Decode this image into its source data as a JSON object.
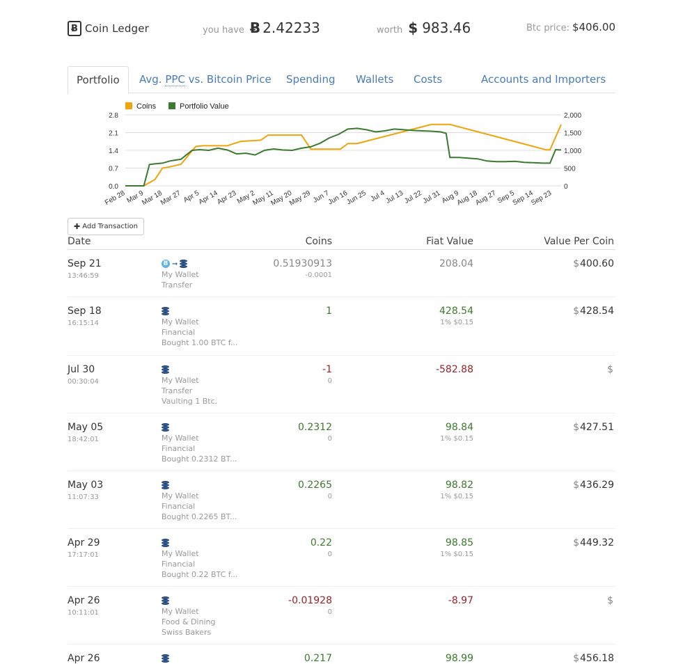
{
  "header": {
    "app_name": "Coin Ledger",
    "brand_glyph": "Ƀ",
    "you_have_label": "you have",
    "btc_glyph": "Ƀ",
    "btc_balance": "2.42233",
    "worth_label": "worth",
    "usd_glyph": "$",
    "usd_worth": "983.46",
    "price_label": "Btc price:",
    "price_value": "$406.00"
  },
  "tabs": [
    {
      "label": "Portfolio",
      "active": true
    },
    {
      "label_pre": "Avg. ",
      "label_abbr": "PPC",
      "label_post": " vs. Bitcoin Price"
    },
    {
      "label": "Spending"
    },
    {
      "label": "Wallets"
    },
    {
      "label": "Costs"
    },
    {
      "label": "Accounts and Importers"
    }
  ],
  "add_button": {
    "icon": "plus-icon",
    "label": "Add Transaction"
  },
  "table": {
    "headers": {
      "date": "Date",
      "coins": "Coins",
      "fiat": "Fiat Value",
      "vpc": "Value Per Coin"
    },
    "rows": [
      {
        "date": "Sep 21",
        "time": "13:46:59",
        "icons": "btc-to-wallet",
        "lines": [
          "My Wallet",
          "Transfer"
        ],
        "coins": "0.51930913",
        "coins_class": "neutral",
        "coins_sub": "-0.0001",
        "fiat": "208.04",
        "fiat_class": "neutral",
        "fiat_sub": "",
        "vpc_sign": "$",
        "vpc": "400.60"
      },
      {
        "date": "Sep 18",
        "time": "16:15:14",
        "icons": "wallet",
        "lines": [
          "My Wallet",
          "Financial",
          "Bought 1.00 BTC f..."
        ],
        "coins": "1",
        "coins_class": "pos",
        "coins_sub": "",
        "fiat": "428.54",
        "fiat_class": "pos",
        "fiat_sub": "1% $0.15",
        "vpc_sign": "$",
        "vpc": "428.54"
      },
      {
        "date": "Jul 30",
        "time": "00:30:04",
        "icons": "wallet",
        "lines": [
          "My Wallet",
          "Transfer",
          "Vaulting 1 Btc."
        ],
        "coins": "-1",
        "coins_class": "neg",
        "coins_sub": "0",
        "fiat": "-582.88",
        "fiat_class": "neg",
        "fiat_sub": "",
        "vpc_sign": "$",
        "vpc": ""
      },
      {
        "date": "May 05",
        "time": "18:42:01",
        "icons": "wallet",
        "lines": [
          "My Wallet",
          "Financial",
          "Bought 0.2312 BT..."
        ],
        "coins": "0.2312",
        "coins_class": "pos",
        "coins_sub": "0",
        "fiat": "98.84",
        "fiat_class": "pos",
        "fiat_sub": "1% $0.15",
        "vpc_sign": "$",
        "vpc": "427.51"
      },
      {
        "date": "May 03",
        "time": "11:07:33",
        "icons": "wallet",
        "lines": [
          "My Wallet",
          "Financial",
          "Bought 0.2265 BT..."
        ],
        "coins": "0.2265",
        "coins_class": "pos",
        "coins_sub": "0",
        "fiat": "98.82",
        "fiat_class": "pos",
        "fiat_sub": "1% $0.15",
        "vpc_sign": "$",
        "vpc": "436.29"
      },
      {
        "date": "Apr 29",
        "time": "17:17:01",
        "icons": "wallet",
        "lines": [
          "My Wallet",
          "Financial",
          "Bought 0.22 BTC f..."
        ],
        "coins": "0.22",
        "coins_class": "pos",
        "coins_sub": "0",
        "fiat": "98.85",
        "fiat_class": "pos",
        "fiat_sub": "1% $0.15",
        "vpc_sign": "$",
        "vpc": "449.32"
      },
      {
        "date": "Apr 26",
        "time": "10:11:01",
        "icons": "wallet",
        "lines": [
          "My Wallet",
          "Food & Dining",
          "Swiss Bakers"
        ],
        "coins": "-0.01928",
        "coins_class": "neg",
        "coins_sub": "0",
        "fiat": "-8.97",
        "fiat_class": "neg",
        "fiat_sub": "",
        "vpc_sign": "$",
        "vpc": ""
      },
      {
        "date": "Apr 26",
        "time": "",
        "icons": "wallet",
        "lines": [],
        "coins": "0.217",
        "coins_class": "pos",
        "coins_sub": "",
        "fiat": "98.99",
        "fiat_class": "pos",
        "fiat_sub": "",
        "vpc_sign": "$",
        "vpc": "456.18"
      }
    ]
  },
  "chart_data": {
    "type": "line",
    "legend_position": "top-left",
    "grid": true,
    "x_labels": [
      "Feb 28",
      "Mar 9",
      "Mar 18",
      "Mar 27",
      "Apr 5",
      "Apr 14",
      "Apr 23",
      "May 2",
      "May 11",
      "May 20",
      "May 29",
      "Jun 7",
      "Jun 16",
      "Jun 25",
      "Jul 4",
      "Jul 13",
      "Jul 22",
      "Jul 31",
      "Aug 9",
      "Aug 18",
      "Aug 27",
      "Sep 5",
      "Sep 14",
      "Sep 23"
    ],
    "y_left": {
      "ticks": [
        "0.0",
        "0.7",
        "1.4",
        "2.1",
        "2.8"
      ],
      "range": [
        0,
        2.8
      ]
    },
    "y_right": {
      "ticks": [
        "0",
        "500",
        "1,000",
        "1,500",
        "2,000"
      ],
      "range": [
        0,
        2000
      ]
    },
    "series": [
      {
        "name": "Coins",
        "axis": "left",
        "color": "#f0a30a",
        "x": [
          0,
          0.5,
          1,
          1.6,
          2,
          2.4,
          3,
          3.6,
          3.8,
          4.2,
          5.5,
          6.2,
          6.6,
          7.1,
          7.3,
          7.5,
          7.7,
          8.4,
          9,
          9.5,
          10,
          10.4,
          11,
          11.6,
          12,
          12.5,
          16.5,
          17.3,
          17.5,
          22.7,
          22.9,
          23.5
        ],
        "y": [
          0,
          0,
          0,
          0.25,
          0.7,
          0.75,
          0.85,
          1.38,
          1.55,
          1.58,
          1.58,
          1.75,
          1.77,
          1.79,
          1.8,
          1.9,
          2.0,
          2.0,
          2.0,
          2.0,
          1.45,
          1.45,
          1.45,
          1.45,
          1.67,
          1.67,
          2.42,
          2.42,
          2.42,
          1.42,
          1.42,
          2.42
        ]
      },
      {
        "name": "Portfolio Value",
        "axis": "right",
        "color": "#3a7a2e",
        "x": [
          0,
          0.5,
          1,
          1.3,
          1.6,
          2,
          2.4,
          3,
          3.6,
          4,
          4.5,
          5,
          5.5,
          6,
          6.5,
          7,
          7.5,
          8,
          8.5,
          9,
          9.5,
          10,
          10.5,
          11,
          11.5,
          12,
          12.5,
          13,
          13.5,
          14,
          14.5,
          15,
          15.5,
          16,
          16.5,
          17,
          17.3,
          17.5,
          18,
          18.5,
          19,
          19.5,
          20,
          20.5,
          21,
          21.5,
          22,
          22.5,
          22.7,
          22.9,
          23.2,
          23.5
        ],
        "y": [
          0,
          0,
          0,
          600,
          620,
          640,
          700,
          750,
          1000,
          1020,
          1000,
          1060,
          1010,
          900,
          920,
          870,
          1000,
          1040,
          1010,
          1000,
          1060,
          1100,
          1200,
          1350,
          1450,
          1600,
          1620,
          1580,
          1520,
          1550,
          1600,
          1580,
          1560,
          1550,
          1540,
          1520,
          1480,
          800,
          800,
          780,
          760,
          700,
          680,
          680,
          690,
          660,
          650,
          640,
          640,
          640,
          1020,
          1010
        ]
      }
    ]
  }
}
